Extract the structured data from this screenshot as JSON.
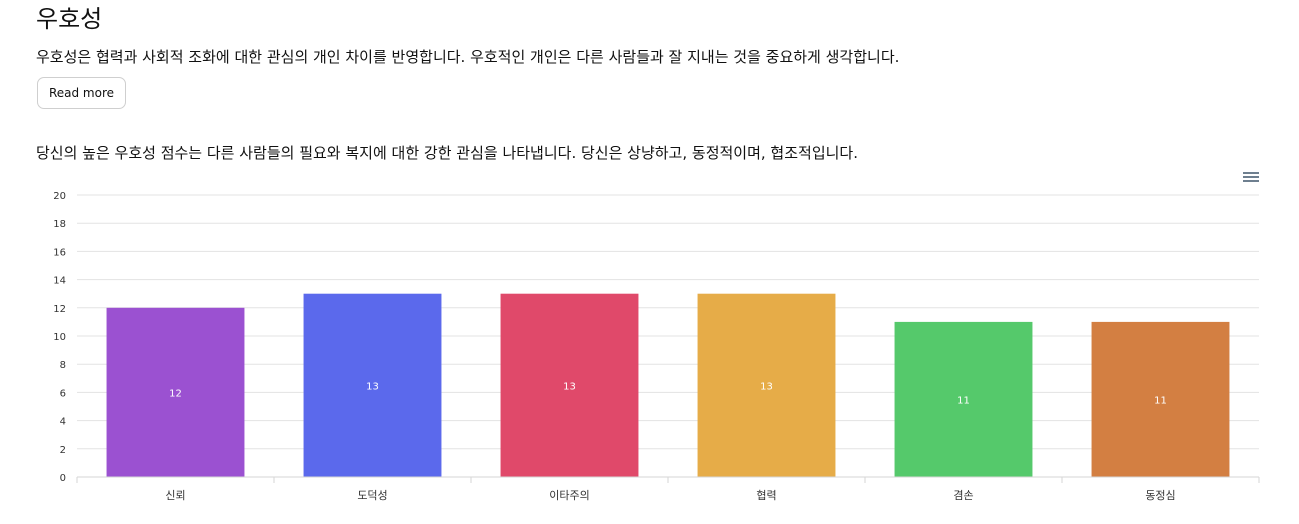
{
  "section": {
    "title": "우호성",
    "description": "우호성은 협력과 사회적 조화에 대한 관심의 개인 차이를 반영합니다. 우호적인 개인은 다른 사람들과 잘 지내는 것을 중요하게 생각합니다.",
    "read_more_label": "Read more",
    "result_text": "당신의 높은 우호성 점수는 다른 사람들의 필요와 복지에 대한 강한 관심을 나타냅니다. 당신은 상냥하고, 동정적이며, 협조적입니다."
  },
  "toolbar": {
    "menu_icon": "hamburger-menu-icon"
  },
  "chart_data": {
    "type": "bar",
    "title": "",
    "xlabel": "",
    "ylabel": "",
    "categories": [
      "신뢰",
      "도덕성",
      "이타주의",
      "협력",
      "겸손",
      "동정심"
    ],
    "values": [
      12,
      13,
      13,
      13,
      11,
      11
    ],
    "colors": [
      "#9b51d1",
      "#5b69ec",
      "#e0496a",
      "#e6ac48",
      "#55c96b",
      "#d37f42"
    ],
    "ylim": [
      0,
      20
    ],
    "yticks": [
      0,
      2,
      4,
      6,
      8,
      10,
      12,
      14,
      16,
      18,
      20
    ],
    "grid": true,
    "data_labels": true,
    "legend": "none"
  }
}
